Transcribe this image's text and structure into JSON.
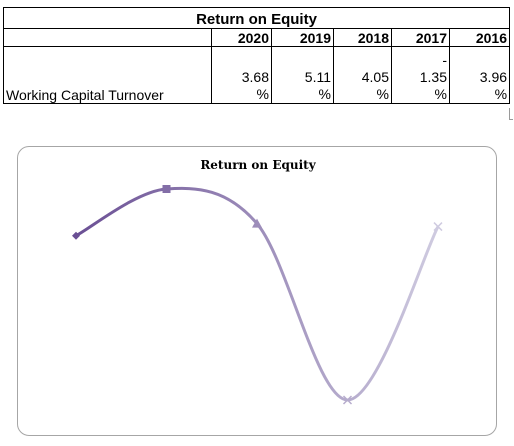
{
  "table": {
    "title": "Return on Equity",
    "years": [
      "2020",
      "2019",
      "2018",
      "2017",
      "2016"
    ],
    "row_label": "Working Capital Turnover",
    "values": [
      {
        "sign": "",
        "number": "3.68",
        "unit": "%"
      },
      {
        "sign": "",
        "number": "5.11",
        "unit": "%"
      },
      {
        "sign": "",
        "number": "4.05",
        "unit": "%"
      },
      {
        "sign": "-",
        "number": "1.35",
        "unit": "%"
      },
      {
        "sign": "",
        "number": "3.96",
        "unit": "%"
      }
    ]
  },
  "chart_data": {
    "type": "line",
    "title": "Return on Equity",
    "x": [
      "2020",
      "2019",
      "2018",
      "2017",
      "2016"
    ],
    "series": [
      {
        "values": [
          3.68,
          5.11,
          4.05,
          -1.35,
          3.96
        ]
      }
    ],
    "markers": [
      "diamond",
      "square",
      "triangle",
      "x",
      "x"
    ],
    "ylim": [
      -1.35,
      5.11
    ],
    "smoothed": true,
    "axes_visible": false,
    "grid": false,
    "legend": "none",
    "colors": {
      "start": "#6a4f94",
      "end": "#cfcbe0",
      "border": "#a6a6a6"
    }
  }
}
